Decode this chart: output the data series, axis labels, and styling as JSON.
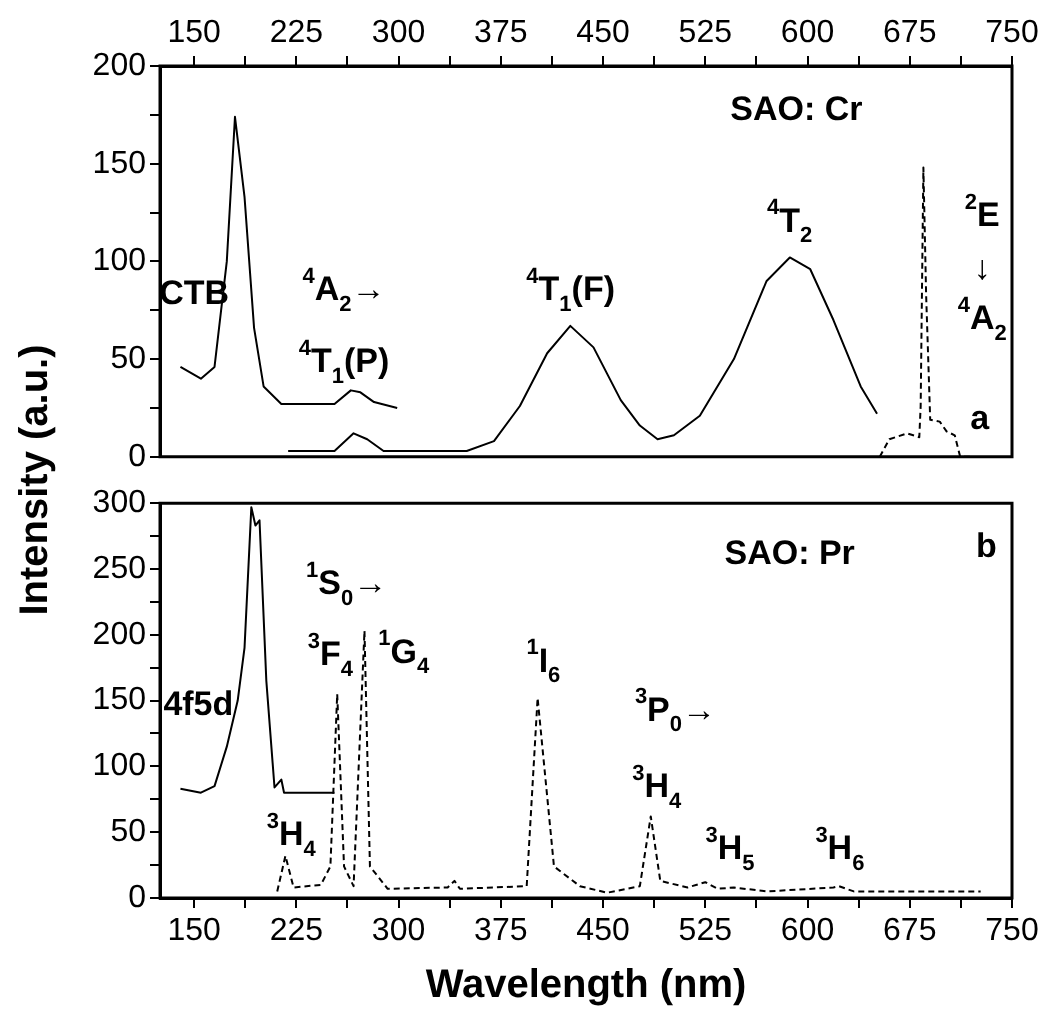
{
  "chart_data": [
    {
      "type": "line",
      "ylabel": "Intensity (a.u.)",
      "xlim": [
        125,
        750
      ],
      "xticks": [
        150,
        {
          "value": 187.5,
          "label": null
        },
        225,
        {
          "value": 262.5,
          "label": null
        },
        300,
        {
          "value": 337.5,
          "label": null
        },
        375,
        {
          "value": 412.5,
          "label": null
        },
        450,
        {
          "value": 487.5,
          "label": null
        },
        525,
        {
          "value": 562.5,
          "label": null
        },
        600,
        {
          "value": 637.5,
          "label": null
        },
        675,
        {
          "value": 712.5,
          "label": null
        },
        750
      ],
      "ylim": [
        0,
        200
      ],
      "yticks": [
        0,
        {
          "value": 25,
          "label": null
        },
        50,
        {
          "value": 75,
          "label": null
        },
        100,
        {
          "value": 125,
          "label": null
        },
        150,
        {
          "value": 175,
          "label": null
        },
        200
      ],
      "grid": false,
      "legend": false,
      "marker": "none",
      "series": [
        {
          "color": "#000000",
          "line_style": "solid",
          "x": [
            140,
            155,
            165,
            174,
            180,
            187,
            194,
            201,
            214,
            253,
            265,
            272,
            282,
            299
          ],
          "values": [
            46,
            40,
            46,
            100,
            174,
            133,
            66,
            36,
            27,
            27,
            34,
            33,
            28,
            25
          ]
        },
        {
          "color": "#000000",
          "line_style": "solid",
          "x": [
            219,
            253,
            267,
            277,
            289,
            350,
            370,
            389,
            409,
            426,
            443,
            463,
            477,
            490,
            502,
            521,
            546,
            570,
            587,
            602,
            619,
            639,
            651
          ],
          "values": [
            3,
            3,
            12,
            9,
            3,
            3,
            8,
            26,
            53,
            67,
            56,
            29,
            16,
            9,
            11,
            21,
            50,
            90,
            102,
            96,
            70,
            36,
            22
          ]
        },
        {
          "color": "#000000",
          "line_style": "dashed",
          "x": [
            653,
            660,
            673,
            682,
            683,
            685,
            687,
            690,
            697,
            702,
            708,
            712,
            721
          ],
          "values": [
            0,
            9,
            12,
            10,
            26,
            148,
            83,
            19,
            18,
            13,
            11,
            0,
            0
          ]
        }
      ],
      "annotations": [
        "SAO: Cr",
        "CTB",
        "$^{4}$A$_{2}$→",
        "$^{4}$T$_{1}$(P)",
        "$^{4}$T$_{1}$(F)",
        "$^{4}$T$_{2}$",
        "$^{2}$E",
        "↓",
        "$^{4}$A$_{2}$",
        "a"
      ]
    },
    {
      "type": "line",
      "xlabel": "Wavelength (nm)",
      "xlim": [
        125,
        750
      ],
      "xticks": [
        150,
        {
          "value": 187.5,
          "label": null
        },
        225,
        {
          "value": 262.5,
          "label": null
        },
        300,
        {
          "value": 337.5,
          "label": null
        },
        375,
        {
          "value": 412.5,
          "label": null
        },
        450,
        {
          "value": 487.5,
          "label": null
        },
        525,
        {
          "value": 562.5,
          "label": null
        },
        600,
        {
          "value": 637.5,
          "label": null
        },
        675,
        {
          "value": 712.5,
          "label": null
        },
        750
      ],
      "ylim": [
        0,
        300
      ],
      "yticks": [
        0,
        {
          "value": 25,
          "label": null
        },
        50,
        {
          "value": 75,
          "label": null
        },
        100,
        {
          "value": 125,
          "label": null
        },
        150,
        {
          "value": 175,
          "label": null
        },
        200,
        {
          "value": 225,
          "label": null
        },
        250,
        {
          "value": 275,
          "label": null
        },
        300
      ],
      "grid": false,
      "legend": false,
      "marker": "none",
      "series": [
        {
          "color": "#000000",
          "line_style": "solid",
          "x": [
            140,
            155,
            165,
            174,
            182,
            187,
            192,
            195,
            198,
            203,
            209,
            214,
            216,
            253
          ],
          "values": [
            83,
            80,
            85,
            115,
            150,
            190,
            297,
            283,
            287,
            165,
            84,
            90,
            80,
            80
          ]
        },
        {
          "color": "#000000",
          "line_style": "dashed",
          "x": [
            211,
            217,
            223,
            243,
            250,
            255,
            260,
            267,
            275,
            279,
            292,
            336,
            341,
            345,
            394,
            402,
            414,
            433,
            453,
            477,
            485,
            492,
            512,
            525,
            534,
            546,
            570,
            619,
            623,
            634,
            727
          ],
          "values": [
            5,
            32,
            8,
            10,
            24,
            155,
            24,
            9,
            203,
            24,
            7,
            8,
            13,
            7,
            9,
            152,
            24,
            9,
            4,
            9,
            62,
            13,
            8,
            12,
            7,
            8,
            5,
            8,
            9,
            5,
            5
          ]
        }
      ],
      "annotations": [
        "SAO: Pr",
        "b",
        "4f5d",
        "$^{1}$S$_{0}$→",
        "$^{3}$F$_{4}$",
        "$^{1}$G$_{4}$",
        "$^{1}$I$_{6}$",
        "$^{3}$P$_{0}$→",
        "$^{3}$H$_{4}$",
        "$^{3}$H$_{4}$",
        "$^{3}$H$_{5}$",
        "$^{3}$H$_{6}$"
      ]
    }
  ]
}
